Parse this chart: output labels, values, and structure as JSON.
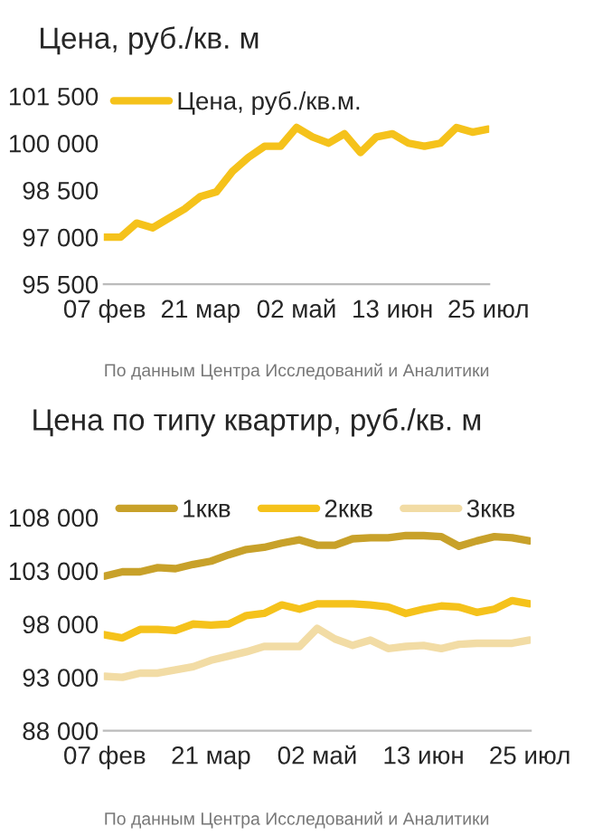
{
  "chart_data": [
    {
      "type": "line",
      "title": "Цена, руб./кв. м",
      "categories": [
        "07 фев",
        null,
        null,
        null,
        null,
        null,
        "21 мар",
        null,
        null,
        null,
        null,
        null,
        "02 май",
        null,
        null,
        null,
        null,
        null,
        "13 июн",
        null,
        null,
        null,
        null,
        null,
        "25 июл"
      ],
      "series": [
        {
          "name": "Цена, руб./кв.м.",
          "color": "#f5c21b",
          "values": [
            97000,
            97000,
            97450,
            97300,
            97600,
            97900,
            98300,
            98450,
            99100,
            99550,
            99900,
            99900,
            100500,
            100200,
            100000,
            100300,
            99700,
            100200,
            100300,
            100000,
            99900,
            100000,
            100500,
            100350,
            100450
          ]
        }
      ],
      "ylim": [
        95500,
        101500
      ],
      "yticks": [
        {
          "value": 95500,
          "label": "95 500"
        },
        {
          "value": 97000,
          "label": "97 000"
        },
        {
          "value": 98500,
          "label": "98 500"
        },
        {
          "value": 100000,
          "label": "100 000"
        },
        {
          "value": 101500,
          "label": "101 500"
        }
      ],
      "legend": "top left",
      "grid": false,
      "annotations": [
        "По данным Центра Исследований и Аналитики"
      ]
    },
    {
      "type": "line",
      "title": "Цена по типу квартир, руб./кв. м",
      "categories": [
        "07 фев",
        null,
        null,
        null,
        null,
        null,
        "21 мар",
        null,
        null,
        null,
        null,
        null,
        "02 май",
        null,
        null,
        null,
        null,
        null,
        "13 июн",
        null,
        null,
        null,
        null,
        null,
        "25 июл"
      ],
      "series": [
        {
          "name": "1ккв",
          "color": "#c8a12a",
          "values": [
            102500,
            102900,
            102900,
            103300,
            103200,
            103600,
            103900,
            104500,
            105000,
            105200,
            105600,
            105900,
            105400,
            105400,
            106000,
            106100,
            106100,
            106300,
            106300,
            106200,
            105300,
            105800,
            106200,
            106100,
            105800
          ]
        },
        {
          "name": "2ккв",
          "color": "#f5c21b",
          "values": [
            97000,
            96700,
            97500,
            97500,
            97400,
            98000,
            97900,
            98000,
            98800,
            99000,
            99800,
            99400,
            99900,
            99900,
            99900,
            99800,
            99600,
            99000,
            99400,
            99700,
            99600,
            99100,
            99400,
            100200,
            99900
          ]
        },
        {
          "name": "3ккв",
          "color": "#f2dca5",
          "values": [
            93100,
            93000,
            93400,
            93400,
            93700,
            94000,
            94600,
            95000,
            95400,
            95900,
            95900,
            95900,
            97600,
            96600,
            96000,
            96500,
            95700,
            95900,
            96000,
            95700,
            96100,
            96200,
            96200,
            96200,
            96500
          ]
        }
      ],
      "ylim": [
        88000,
        108000
      ],
      "yticks": [
        {
          "value": 88000,
          "label": "88 000"
        },
        {
          "value": 93000,
          "label": "93 000"
        },
        {
          "value": 98000,
          "label": "98 000"
        },
        {
          "value": 103000,
          "label": "103 000"
        },
        {
          "value": 108000,
          "label": "108 000"
        }
      ],
      "legend": "top",
      "grid": false,
      "annotations": [
        "По данным Центра Исследований и Аналитики"
      ]
    }
  ]
}
